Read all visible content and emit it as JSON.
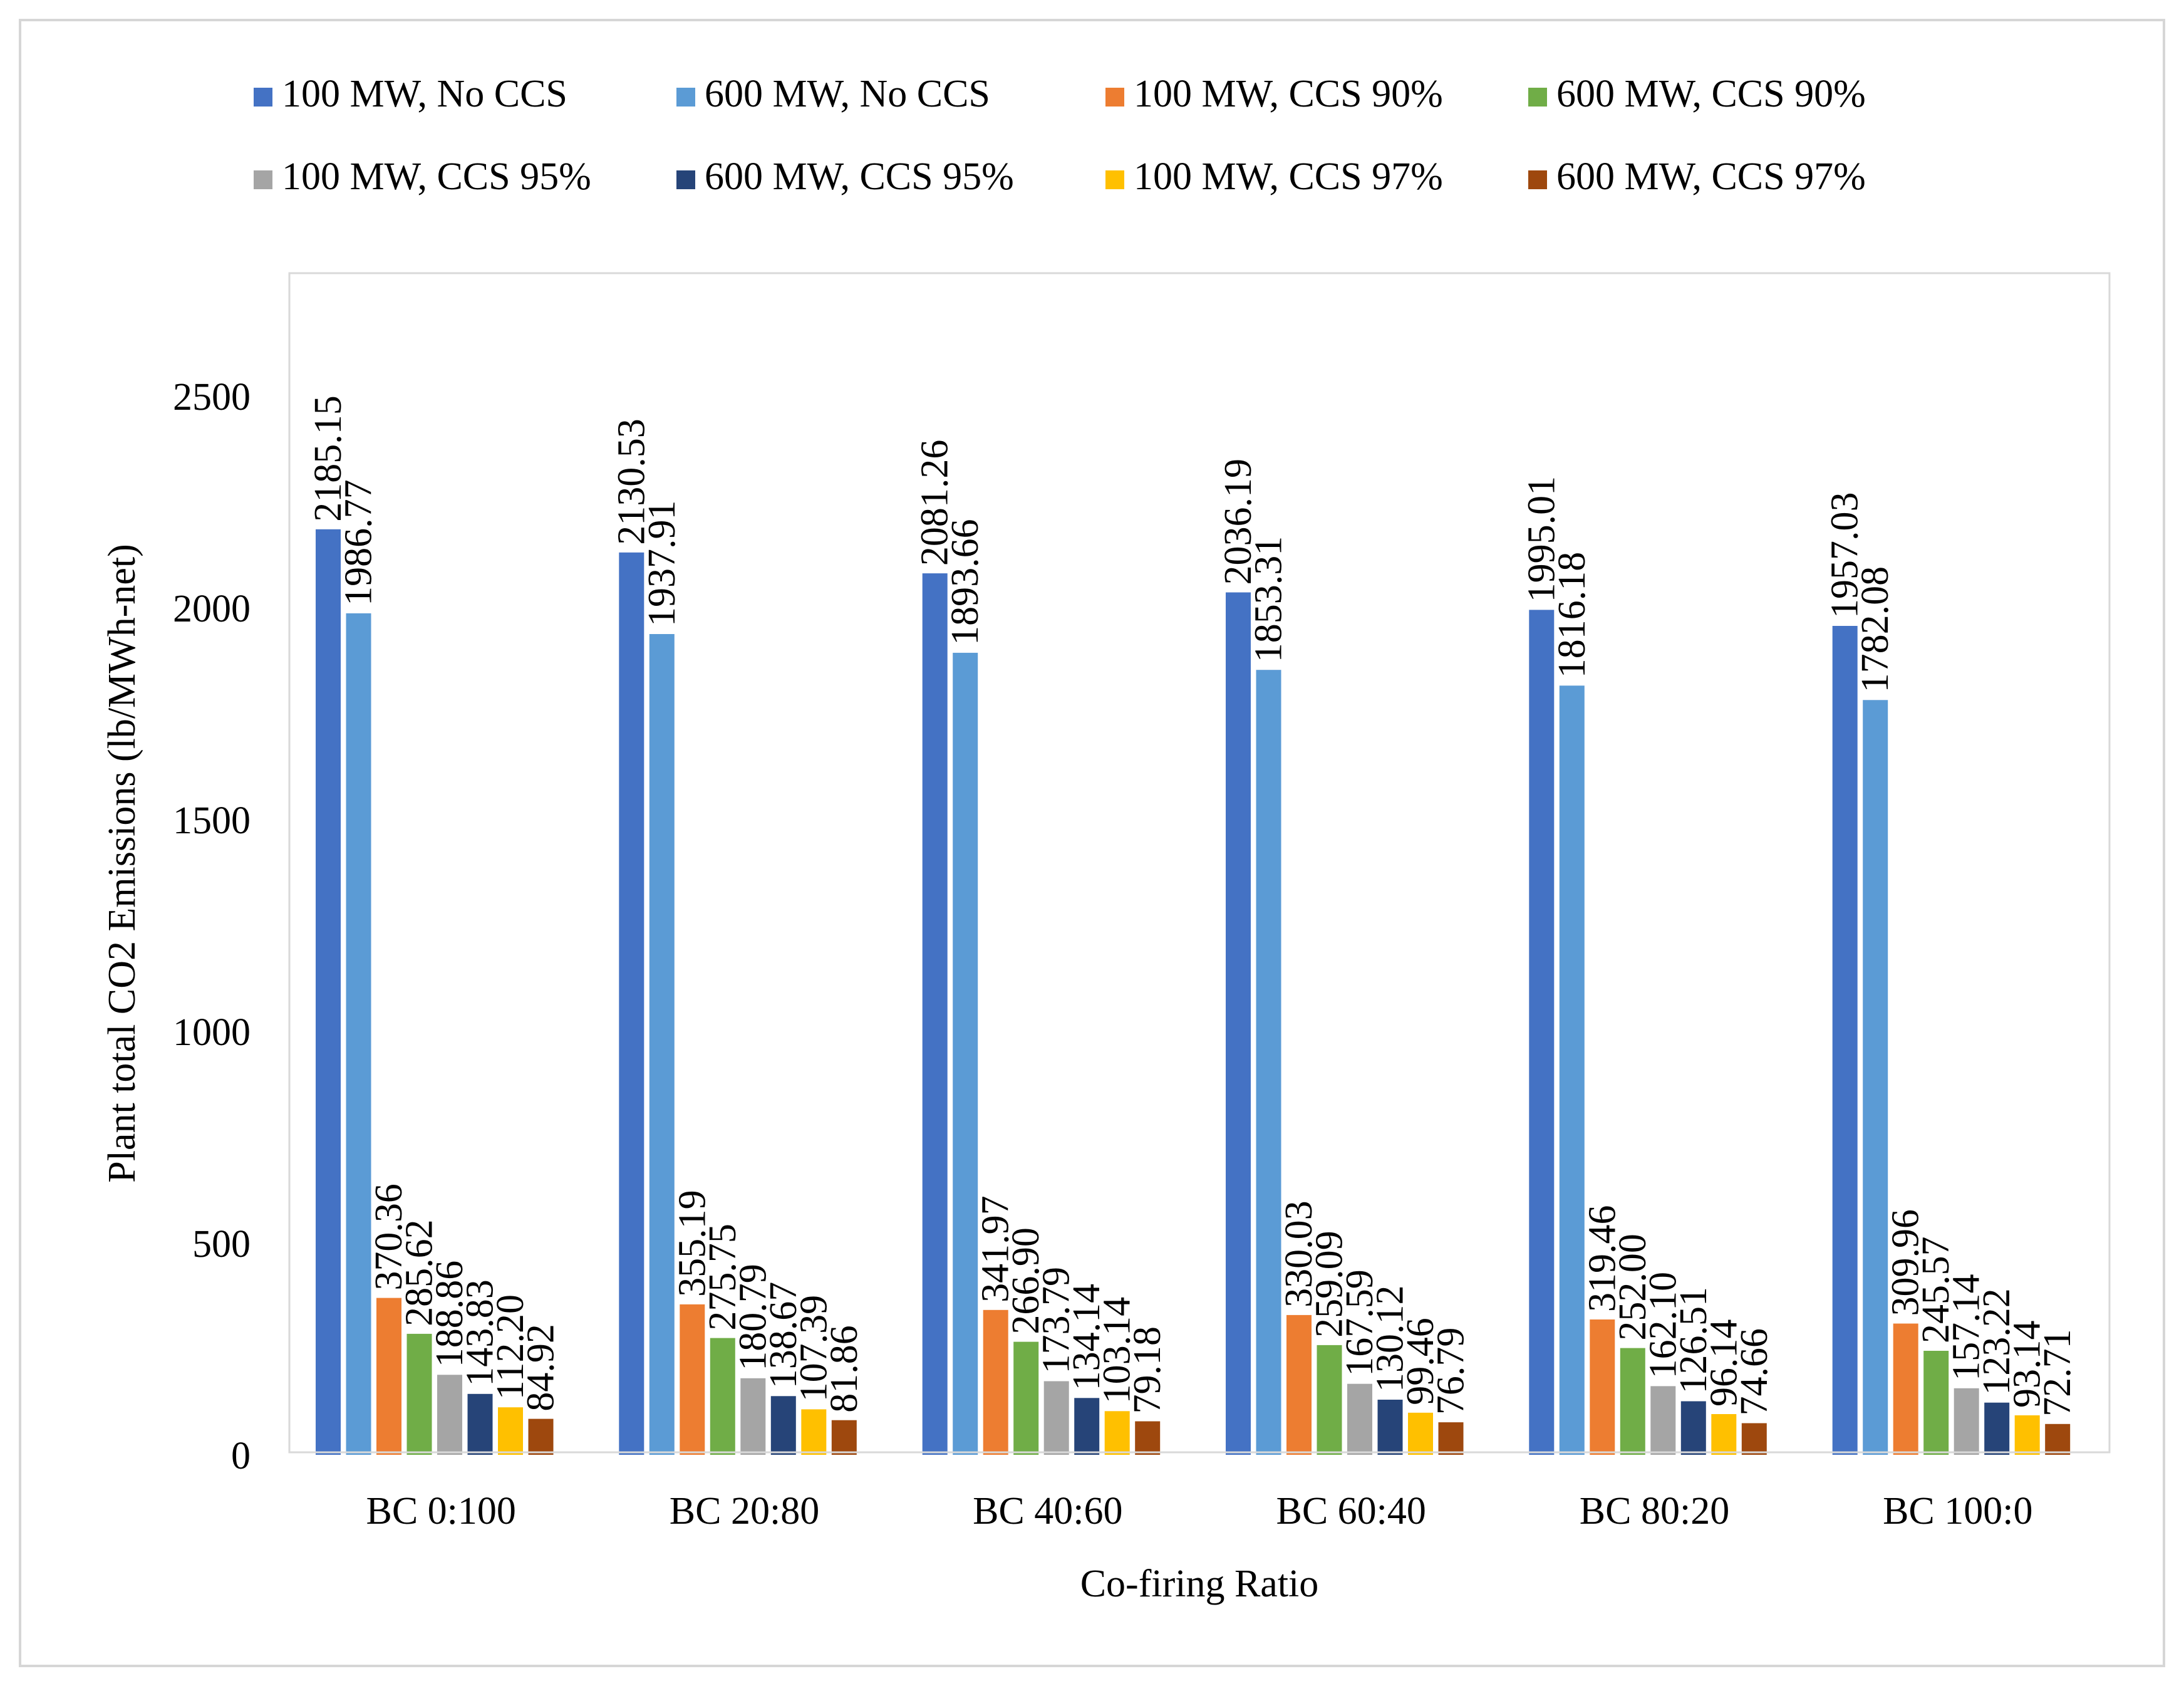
{
  "chart_data": {
    "type": "bar",
    "title": "",
    "xlabel": "Co-firing Ratio",
    "ylabel": "Plant total CO2 Emissions (lb/MWh-net)",
    "ylim": [
      0,
      2750
    ],
    "yticks": [
      0,
      500,
      1000,
      1500,
      2000,
      2500
    ],
    "grid": false,
    "legend_position": "top",
    "categories": [
      "BC 0:100",
      "BC 20:80",
      "BC 40:60",
      "BC 60:40",
      "BC 80:20",
      "BC 100:0"
    ],
    "series": [
      {
        "name": "100 MW, No CCS",
        "color": "#4472c4",
        "values": [
          2185.15,
          2130.53,
          2081.26,
          2036.19,
          1995.01,
          1957.03
        ],
        "labels": [
          "2185.15",
          "2130.53",
          "2081.26",
          "2036.19",
          "1995.01",
          "1957.03"
        ]
      },
      {
        "name": "600 MW, No CCS",
        "color": "#5b9bd5",
        "values": [
          1986.77,
          1937.91,
          1893.66,
          1853.31,
          1816.18,
          1782.08
        ],
        "labels": [
          "1986.77",
          "1937.91",
          "1893.66",
          "1853.31",
          "1816.18",
          "1782.08"
        ]
      },
      {
        "name": "100 MW, CCS 90%",
        "color": "#ed7d31",
        "values": [
          370.36,
          355.19,
          341.97,
          330.03,
          319.46,
          309.96
        ],
        "labels": [
          "370.36",
          "355.19",
          "341.97",
          "330.03",
          "319.46",
          "309.96"
        ]
      },
      {
        "name": "600 MW, CCS 90%",
        "color": "#70ad47",
        "values": [
          285.62,
          275.75,
          266.9,
          259.09,
          252.0,
          245.57
        ],
        "labels": [
          "285.62",
          "275.75",
          "266.90",
          "259.09",
          "252.00",
          "245.57"
        ]
      },
      {
        "name": "100 MW, CCS 95%",
        "color": "#a5a5a5",
        "values": [
          188.86,
          180.79,
          173.79,
          167.59,
          162.1,
          157.14
        ],
        "labels": [
          "188.86",
          "180.79",
          "173.79",
          "167.59",
          "162.10",
          "157.14"
        ]
      },
      {
        "name": "600 MW, CCS 95%",
        "color": "#264478",
        "values": [
          143.83,
          138.67,
          134.14,
          130.12,
          126.51,
          123.22
        ],
        "labels": [
          "143.83",
          "138.67",
          "134.14",
          "130.12",
          "126.51",
          "123.22"
        ]
      },
      {
        "name": "100 MW, CCS 97%",
        "color": "#ffc000",
        "values": [
          112.2,
          107.39,
          103.14,
          99.46,
          96.14,
          93.14
        ],
        "labels": [
          "112.20",
          "107.39",
          "103.14",
          "99.46",
          "96.14",
          "93.14"
        ]
      },
      {
        "name": "600 MW, CCS 97%",
        "color": "#9e480e",
        "values": [
          84.92,
          81.86,
          79.18,
          76.79,
          74.66,
          72.71
        ],
        "labels": [
          "84.92",
          "81.86",
          "79.18",
          "76.79",
          "74.66",
          "72.71"
        ]
      }
    ]
  }
}
